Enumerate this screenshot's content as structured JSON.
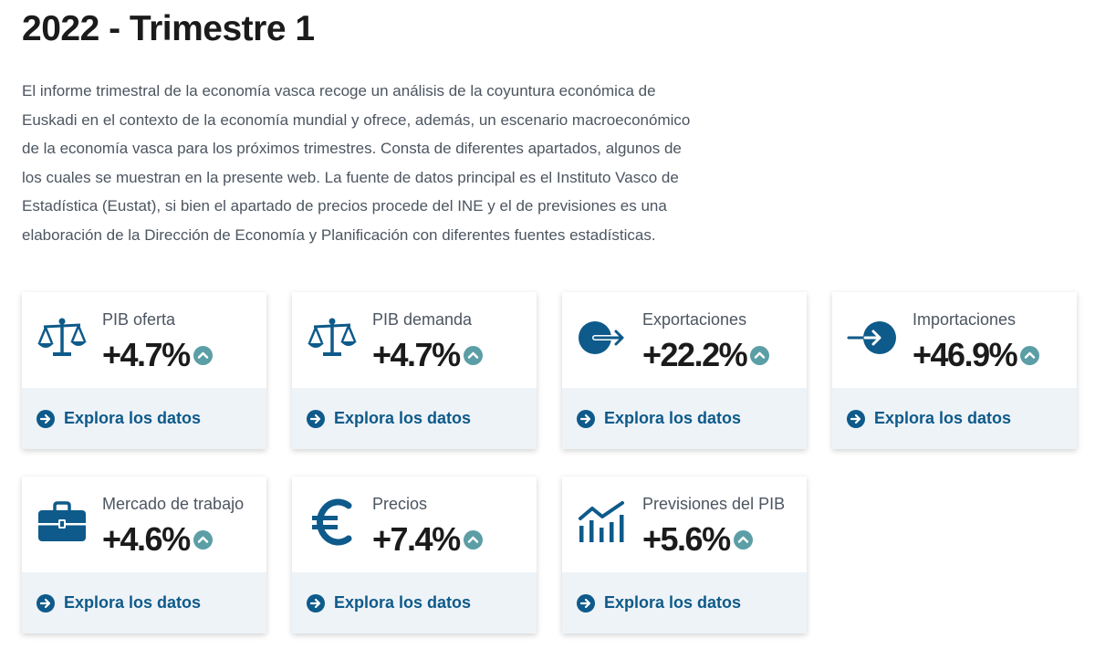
{
  "page": {
    "title": "2022 - Trimestre 1",
    "intro": "El informe trimestral de la economía vasca recoge un análisis de la coyuntura económica de Euskadi en el contexto de la economía mundial y ofrece, además, un escenario macroeconómico de la economía vasca para los próximos trimestres. Consta de diferentes apartados, algunos de los cuales se muestran en la presente web. La fuente de datos principal es el Instituto Vasco de Estadística (Eustat), si bien el apartado de precios procede del INE y el de previsiones es una elaboración de la Dirección de Economía y Planificación con diferentes fuentes estadísticas."
  },
  "colors": {
    "icon": "#0e5a8a",
    "trend": "#5b9ea6",
    "link": "#0e5a8a",
    "card_footer": "#eef3f7"
  },
  "cards": [
    {
      "label": "PIB oferta",
      "value": "+4.7%",
      "trend": "up",
      "icon": "scale-icon",
      "link": "Explora los datos"
    },
    {
      "label": "PIB demanda",
      "value": "+4.7%",
      "trend": "up",
      "icon": "scale-icon",
      "link": "Explora los datos"
    },
    {
      "label": "Exportaciones",
      "value": "+22.2%",
      "trend": "up",
      "icon": "export-icon",
      "link": "Explora los datos"
    },
    {
      "label": "Importaciones",
      "value": "+46.9%",
      "trend": "up",
      "icon": "import-icon",
      "link": "Explora los datos"
    },
    {
      "label": "Mercado de trabajo",
      "value": "+4.6%",
      "trend": "up",
      "icon": "briefcase-icon",
      "link": "Explora los datos"
    },
    {
      "label": "Precios",
      "value": "+7.4%",
      "trend": "up",
      "icon": "euro-icon",
      "link": "Explora los datos"
    },
    {
      "label": "Previsiones del PIB",
      "value": "+5.6%",
      "trend": "up",
      "icon": "chart-growth-icon",
      "link": "Explora los datos"
    }
  ]
}
